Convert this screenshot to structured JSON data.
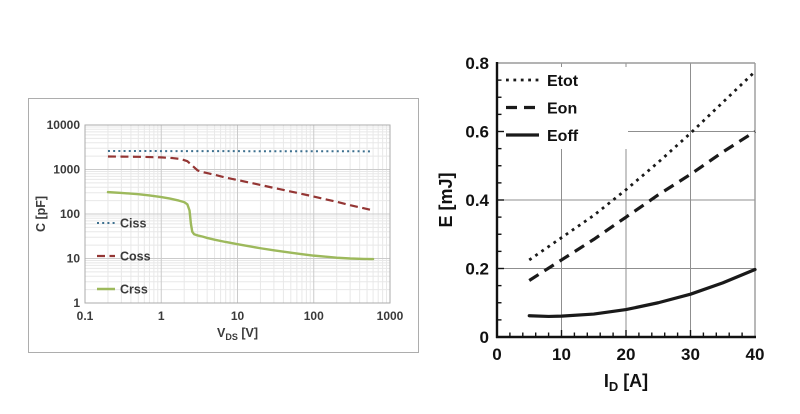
{
  "figure": {
    "background": "#ffffff"
  },
  "chart_data": [
    {
      "id": "capacitance-vs-vds",
      "type": "line",
      "title": "",
      "xlabel": {
        "main": "V",
        "sub": "DS",
        "unit": " [V]"
      },
      "ylabel": {
        "text": "C [pF]"
      },
      "xscale": "log",
      "yscale": "log",
      "xlim": [
        0.1,
        1000
      ],
      "ylim": [
        1,
        10000
      ],
      "xticks": {
        "values": [
          0.1,
          1,
          10,
          100,
          1000
        ],
        "labels": [
          "0.1",
          "1",
          "10",
          "100",
          "1000"
        ]
      },
      "yticks": {
        "values": [
          1,
          10,
          100,
          1000,
          10000
        ],
        "labels": [
          "1",
          "10",
          "100",
          "1000",
          "10000"
        ]
      },
      "grid": "log-minor",
      "legend_position": "inside-left",
      "text_color": "#3a3a3a",
      "series": [
        {
          "name": "Ciss",
          "style": "dotted",
          "color": "#3D708F",
          "x": [
            0.2,
            0.5,
            1,
            2,
            5,
            10,
            30,
            100,
            300,
            600
          ],
          "y": [
            2600,
            2600,
            2595,
            2590,
            2585,
            2580,
            2575,
            2570,
            2565,
            2560
          ]
        },
        {
          "name": "Coss",
          "style": "dashed",
          "color": "#943634",
          "x": [
            0.2,
            0.3,
            0.5,
            0.7,
            1,
            1.4,
            1.8,
            2.2,
            2.6,
            3.0,
            3.4,
            4,
            5,
            7,
            10,
            15,
            20,
            30,
            50,
            70,
            100,
            150,
            200,
            300,
            450,
            600
          ],
          "y": [
            1960,
            1950,
            1930,
            1905,
            1870,
            1810,
            1720,
            1540,
            1190,
            950,
            885,
            830,
            760,
            660,
            580,
            500,
            450,
            385,
            320,
            283,
            247,
            210,
            188,
            158,
            135,
            120
          ]
        },
        {
          "name": "Crss",
          "style": "solid",
          "color": "#9DB95C",
          "x": [
            0.2,
            0.3,
            0.5,
            0.7,
            1,
            1.3,
            1.7,
            2.0,
            2.2,
            2.35,
            2.45,
            2.55,
            2.7,
            3.0,
            3.5,
            4,
            5,
            7,
            10,
            15,
            20,
            30,
            50,
            70,
            100,
            150,
            200,
            300,
            450,
            600
          ],
          "y": [
            310,
            298,
            278,
            262,
            240,
            222,
            200,
            185,
            165,
            120,
            60,
            40,
            35,
            33,
            31,
            29,
            26.5,
            23.5,
            21,
            18.5,
            17,
            15.3,
            13.5,
            12.5,
            11.6,
            10.9,
            10.4,
            10,
            9.8,
            9.7
          ]
        }
      ]
    },
    {
      "id": "switching-energy-vs-id",
      "type": "line",
      "title": "",
      "xlabel": {
        "main": "I",
        "sub": "D",
        "unit": " [A]"
      },
      "ylabel": {
        "text": "E [mJ]"
      },
      "xscale": "linear",
      "yscale": "linear",
      "xlim": [
        0,
        40
      ],
      "ylim": [
        0,
        0.8
      ],
      "xticks": {
        "values": [
          0,
          10,
          20,
          30,
          40
        ],
        "labels": [
          "0",
          "10",
          "20",
          "30",
          "40"
        ],
        "minor_step": 2
      },
      "yticks": {
        "values": [
          0,
          0.2,
          0.4,
          0.6,
          0.8
        ],
        "labels": [
          "0",
          "0.2",
          "0.4",
          "0.6",
          "0.8"
        ],
        "minor_step": 0.05
      },
      "grid": "major",
      "legend_position": "inside-top-left",
      "text_color": "#111111",
      "series": [
        {
          "name": "Etot",
          "style": "dotted",
          "color": "#1a1a1a",
          "x": [
            5,
            10,
            15,
            20,
            25,
            30,
            35,
            40
          ],
          "y": [
            0.225,
            0.29,
            0.355,
            0.43,
            0.51,
            0.595,
            0.685,
            0.775
          ]
        },
        {
          "name": "Eon",
          "style": "dashed",
          "color": "#1a1a1a",
          "x": [
            5,
            10,
            15,
            20,
            25,
            30,
            35,
            40
          ],
          "y": [
            0.165,
            0.225,
            0.285,
            0.35,
            0.415,
            0.475,
            0.54,
            0.6
          ]
        },
        {
          "name": "Eoff",
          "style": "solid",
          "color": "#1a1a1a",
          "x": [
            5,
            8,
            10,
            15,
            20,
            25,
            30,
            35,
            40
          ],
          "y": [
            0.062,
            0.06,
            0.061,
            0.067,
            0.08,
            0.1,
            0.125,
            0.158,
            0.197
          ]
        }
      ]
    }
  ]
}
